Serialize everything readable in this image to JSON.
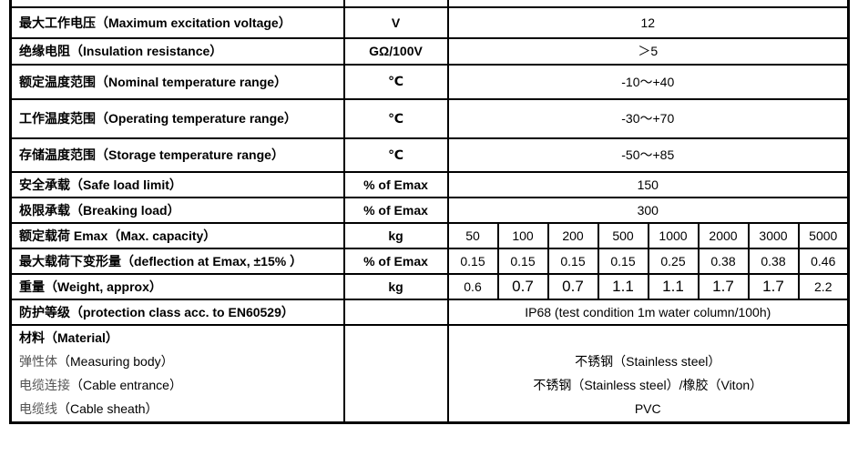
{
  "rows": [
    {
      "label": "最大工作电压（Maximum excitation voltage）",
      "unit": "V",
      "value": "12"
    },
    {
      "label": "绝缘电阻（Insulation resistance）",
      "unit": "GΩ/100V",
      "value": "＞5"
    },
    {
      "label": "额定温度范围（Nominal temperature range）",
      "unit": "℃",
      "value": "-10～+40"
    },
    {
      "label": "工作温度范围（Operating temperature range）",
      "unit": "℃",
      "value": "-30～+70"
    },
    {
      "label": "存储温度范围（Storage temperature range）",
      "unit": "℃",
      "value": "-50～+85"
    },
    {
      "label": "安全承载（Safe load limit）",
      "unit": "% of Emax",
      "value": "150"
    },
    {
      "label": "极限承载（Breaking load）",
      "unit": "% of Emax",
      "value": "300"
    }
  ],
  "capacity": {
    "label": "额定载荷 Emax（Max. capacity）",
    "unit": "kg",
    "values": [
      "50",
      "100",
      "200",
      "500",
      "1000",
      "2000",
      "3000",
      "5000"
    ]
  },
  "deflection": {
    "label": "最大载荷下变形量（deflection at Emax, ±15% ）",
    "unit": "% of Emax",
    "values": [
      "0.15",
      "0.15",
      "0.15",
      "0.15",
      "0.25",
      "0.38",
      "0.38",
      "0.46"
    ]
  },
  "weight": {
    "label": "重量（Weight, approx）",
    "unit": "kg",
    "values": [
      "0.6",
      "0.7",
      "0.7",
      "1.1",
      "1.1",
      "1.7",
      "1.7",
      "2.2"
    ]
  },
  "protection": {
    "label": "防护等级（protection class acc. to EN60529）",
    "unit": "",
    "value": "IP68 (test condition 1m water column/100h)"
  },
  "material": {
    "label": "材料（Material）",
    "items": [
      {
        "zh": "弹性体",
        "en": "（Measuring body）",
        "value": "不锈钢（Stainless steel）"
      },
      {
        "zh": "电缆连接",
        "en": "（Cable entrance）",
        "value": "不锈钢（Stainless steel）/橡胶（Viton）"
      },
      {
        "zh": "电缆线",
        "en": "（Cable sheath）",
        "value": "PVC"
      }
    ]
  }
}
